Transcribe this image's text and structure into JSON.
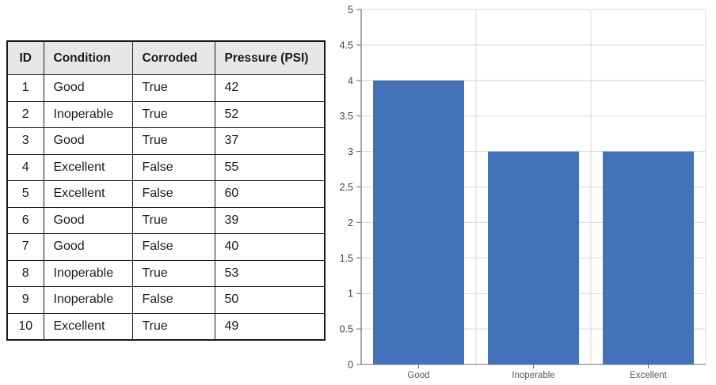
{
  "table": {
    "headers": [
      "ID",
      "Condition",
      "Corroded",
      "Pressure (PSI)"
    ],
    "rows": [
      [
        "1",
        "Good",
        "True",
        "42"
      ],
      [
        "2",
        "Inoperable",
        "True",
        "52"
      ],
      [
        "3",
        "Good",
        "True",
        "37"
      ],
      [
        "4",
        "Excellent",
        "False",
        "55"
      ],
      [
        "5",
        "Excellent",
        "False",
        "60"
      ],
      [
        "6",
        "Good",
        "True",
        "39"
      ],
      [
        "7",
        "Good",
        "False",
        "40"
      ],
      [
        "8",
        "Inoperable",
        "True",
        "53"
      ],
      [
        "9",
        "Inoperable",
        "False",
        "50"
      ],
      [
        "10",
        "Excellent",
        "True",
        "49"
      ]
    ]
  },
  "chart_data": {
    "type": "bar",
    "title": "",
    "categories": [
      "Good",
      "Inoperable",
      "Excellent"
    ],
    "values": [
      4,
      3,
      3
    ],
    "xlabel": "",
    "ylabel": "",
    "ylim": [
      0,
      5
    ],
    "ytick_step": 0.5,
    "ytick_labels": [
      "0",
      "0.5",
      "1",
      "1.5",
      "2",
      "2.5",
      "3",
      "3.5",
      "4",
      "4.5",
      "5"
    ],
    "grid": true,
    "legend": "none",
    "bar_color": "#4273B9",
    "gridline_color": "#d9d9d9",
    "axis_color": "#6e6e6e",
    "tick_label_color": "#404040",
    "category_label_color": "#595959"
  }
}
